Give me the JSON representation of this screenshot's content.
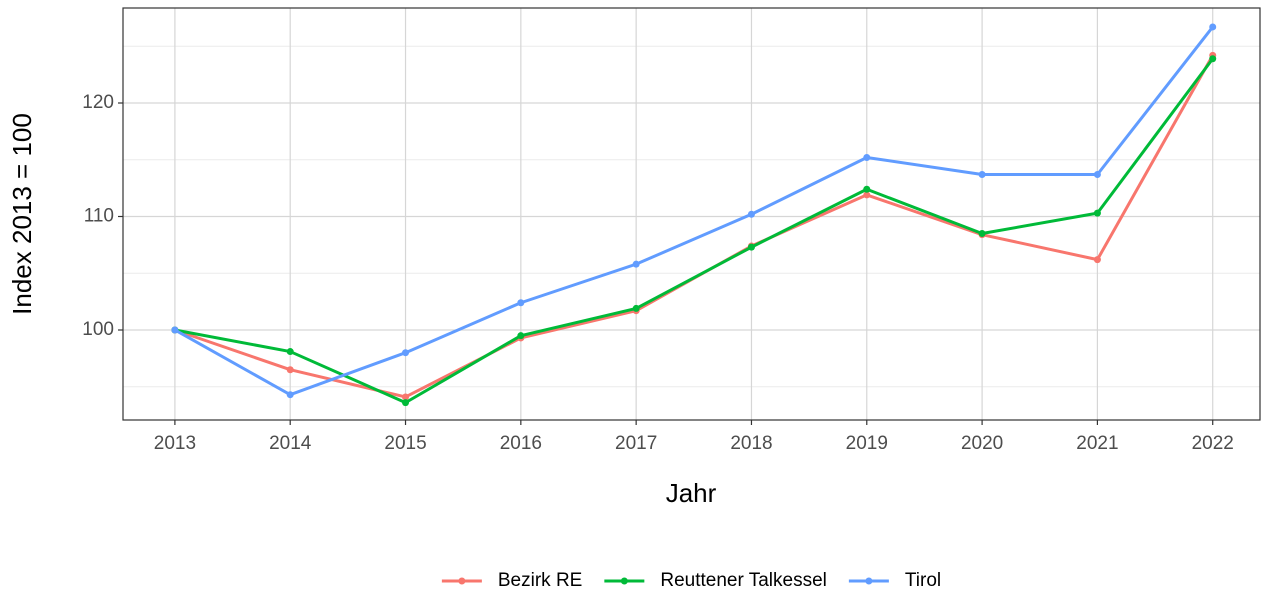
{
  "chart_data": {
    "type": "line",
    "x_label": "Jahr",
    "y_label": "Index  2013  = 100",
    "x": [
      2013,
      2014,
      2015,
      2016,
      2017,
      2018,
      2019,
      2020,
      2021,
      2022
    ],
    "series": [
      {
        "name": "Bezirk RE",
        "color": "#F8766D",
        "values": [
          100,
          96.5,
          94.1,
          99.3,
          101.7,
          107.4,
          111.9,
          108.4,
          106.2,
          124.2
        ]
      },
      {
        "name": "Reuttener Talkessel",
        "color": "#00BA38",
        "values": [
          100,
          98.1,
          93.6,
          99.5,
          101.9,
          107.3,
          112.4,
          108.5,
          110.3,
          123.9
        ]
      },
      {
        "name": "Tirol",
        "color": "#619CFF",
        "values": [
          100,
          94.3,
          98.0,
          102.4,
          105.8,
          110.2,
          115.2,
          113.7,
          113.7,
          126.7
        ]
      }
    ],
    "xlim": [
      2012.55,
      2022.41
    ],
    "xticks": [
      2013,
      2014,
      2015,
      2016,
      2017,
      2018,
      2019,
      2020,
      2021,
      2022
    ],
    "ylim": [
      92.07,
      128.37
    ],
    "yticks": [
      100,
      110,
      120
    ],
    "grid": true,
    "legend": "bottom"
  }
}
